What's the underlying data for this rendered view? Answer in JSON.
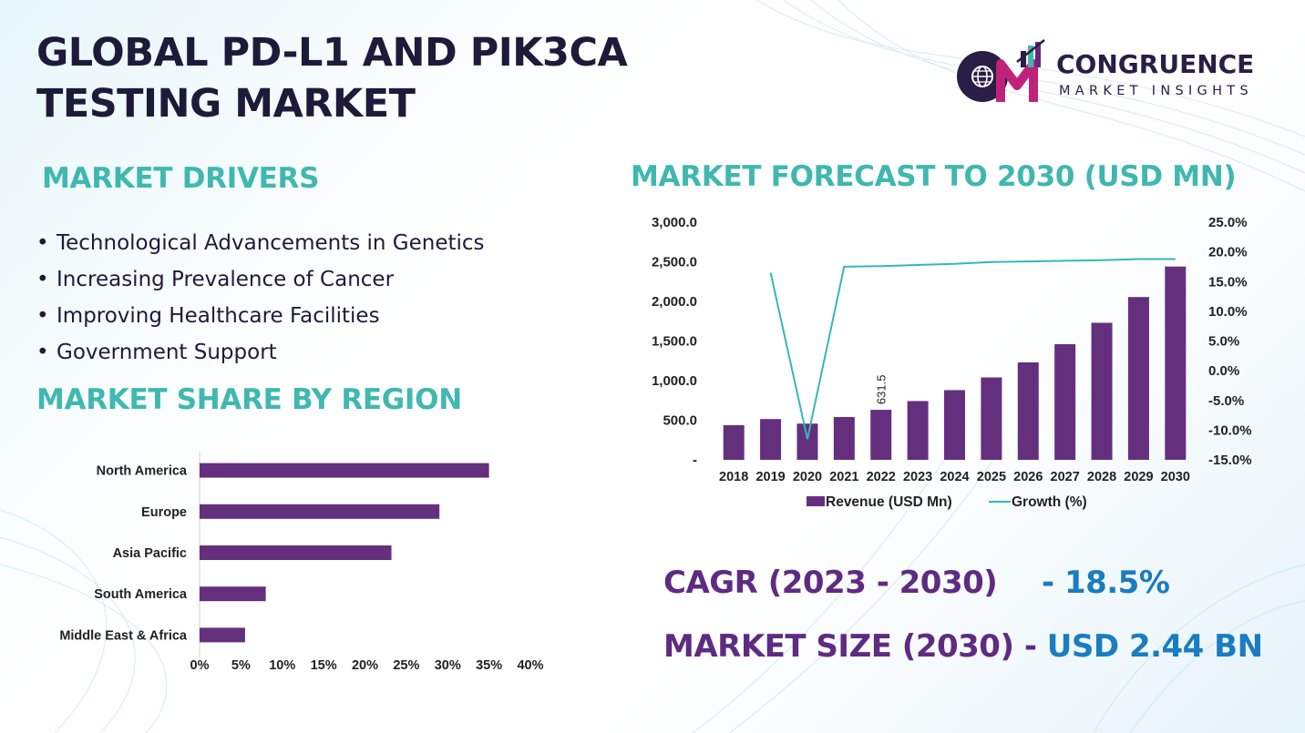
{
  "header": {
    "title_line1": "GLOBAL PD-L1 AND PIK3CA",
    "title_line2": "TESTING MARKET"
  },
  "logo": {
    "icon": "cm-globe-logo-icon",
    "name": "CONGRUENCE",
    "tagline": "MARKET INSIGHTS"
  },
  "drivers": {
    "title": "MARKET DRIVERS",
    "bullet": "•",
    "items": [
      "Technological Advancements in Genetics",
      "Increasing Prevalence of Cancer",
      "Improving Healthcare Facilities",
      "Government Support"
    ]
  },
  "region": {
    "title": "MARKET SHARE BY REGION"
  },
  "forecast": {
    "title": "MARKET FORECAST TO 2030 (USD MN)"
  },
  "stats": {
    "cagr_label": "CAGR (2023 - 2030)",
    "cagr_value": "- 18.5%",
    "size_label": "MARKET SIZE (2030) -",
    "size_value": "USD 2.44 BN"
  },
  "colors": {
    "bar": "#64307e",
    "line": "#35b8b5",
    "teal_heading": "#3fb8b0",
    "stat_label": "#5f2b82",
    "stat_value": "#1a7cc1"
  },
  "chart_data": [
    {
      "type": "bar",
      "orientation": "horizontal",
      "categories": [
        "North America",
        "Europe",
        "Asia Pacific",
        "South America",
        "Middle East & Africa"
      ],
      "values": [
        35,
        29,
        23.2,
        8,
        5.5
      ],
      "xlim": [
        0,
        40
      ],
      "xticks": [
        0,
        5,
        10,
        15,
        20,
        25,
        30,
        35,
        40
      ],
      "xtick_labels": [
        "0%",
        "5%",
        "10%",
        "15%",
        "20%",
        "25%",
        "30%",
        "35%",
        "40%"
      ],
      "grid": false
    },
    {
      "type": "bar",
      "categories": [
        "2018",
        "2019",
        "2020",
        "2021",
        "2022",
        "2023",
        "2024",
        "2025",
        "2026",
        "2027",
        "2028",
        "2029",
        "2030"
      ],
      "series": [
        {
          "name": "Revenue (USD Mn)",
          "type": "bar",
          "axis": "left",
          "values": [
            438,
            515,
            457,
            540,
            631.5,
            742,
            880,
            1040,
            1230,
            1460,
            1730,
            2055,
            2440
          ]
        },
        {
          "name": "Growth (%)",
          "type": "line",
          "axis": "right",
          "values": [
            null,
            16.5,
            -11.5,
            17.5,
            17.6,
            17.8,
            18.0,
            18.3,
            18.4,
            18.5,
            18.6,
            18.8,
            18.8
          ]
        }
      ],
      "data_labels": [
        {
          "category": "2022",
          "text": "631.5"
        }
      ],
      "ylim_left": [
        0,
        3000
      ],
      "yticks_left": [
        0,
        500,
        1000,
        1500,
        2000,
        2500,
        3000
      ],
      "ytick_labels_left": [
        "-",
        "500.0",
        "1,000.0",
        "1,500.0",
        "2,000.0",
        "2,500.0",
        "3,000.0"
      ],
      "ylim_right": [
        -15,
        25
      ],
      "yticks_right": [
        -15,
        -10,
        -5,
        0,
        5,
        10,
        15,
        20,
        25
      ],
      "ytick_labels_right": [
        "-15.0%",
        "-10.0%",
        "-5.0%",
        "0.0%",
        "5.0%",
        "10.0%",
        "15.0%",
        "20.0%",
        "25.0%"
      ],
      "legend": "bottom",
      "grid": false
    }
  ]
}
